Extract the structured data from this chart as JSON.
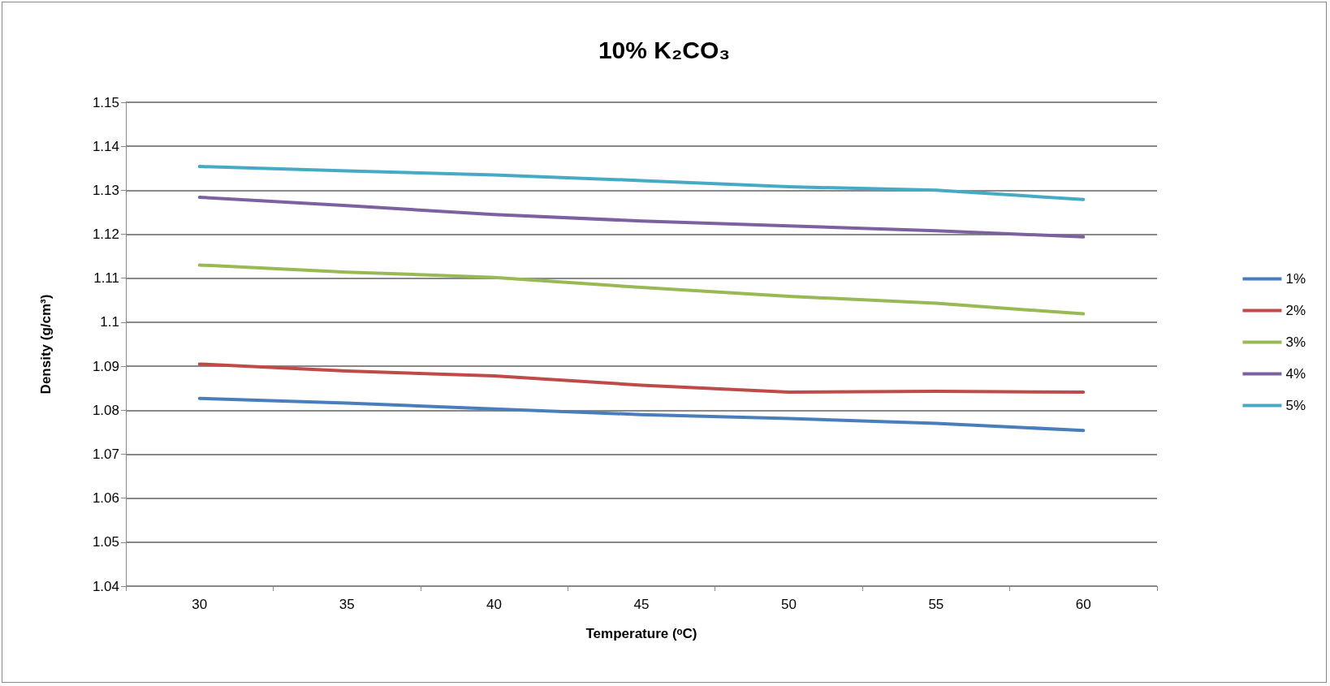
{
  "chart_data": {
    "type": "line",
    "title": "10% K₂CO₃",
    "xlabel": "Temperature (ᵒC)",
    "ylabel": "Density (g/cm³)",
    "categories": [
      "30",
      "35",
      "40",
      "45",
      "50",
      "55",
      "60"
    ],
    "series": [
      {
        "name": "1%",
        "color": "#4a7ebb",
        "values": [
          1.0827,
          1.0816,
          1.0803,
          1.079,
          1.0781,
          1.077,
          1.0754
        ]
      },
      {
        "name": "2%",
        "color": "#be4b48",
        "values": [
          1.0905,
          1.0889,
          1.0878,
          1.0857,
          1.0841,
          1.0843,
          1.0841
        ]
      },
      {
        "name": "3%",
        "color": "#98b954",
        "values": [
          1.113,
          1.1114,
          1.1102,
          1.1079,
          1.1059,
          1.1043,
          1.1019
        ]
      },
      {
        "name": "4%",
        "color": "#7d60a0",
        "values": [
          1.1284,
          1.1265,
          1.1245,
          1.123,
          1.1219,
          1.1208,
          1.1194
        ]
      },
      {
        "name": "5%",
        "color": "#46aac5",
        "values": [
          1.1354,
          1.1344,
          1.1335,
          1.1322,
          1.1308,
          1.13,
          1.1279
        ]
      }
    ],
    "ylim": [
      1.04,
      1.15
    ],
    "yticks": [
      1.04,
      1.05,
      1.06,
      1.07,
      1.08,
      1.09,
      1.1,
      1.11,
      1.12,
      1.13,
      1.14,
      1.15
    ],
    "grid": "y",
    "legend": "right",
    "marker": "none",
    "line_style": "solid"
  }
}
